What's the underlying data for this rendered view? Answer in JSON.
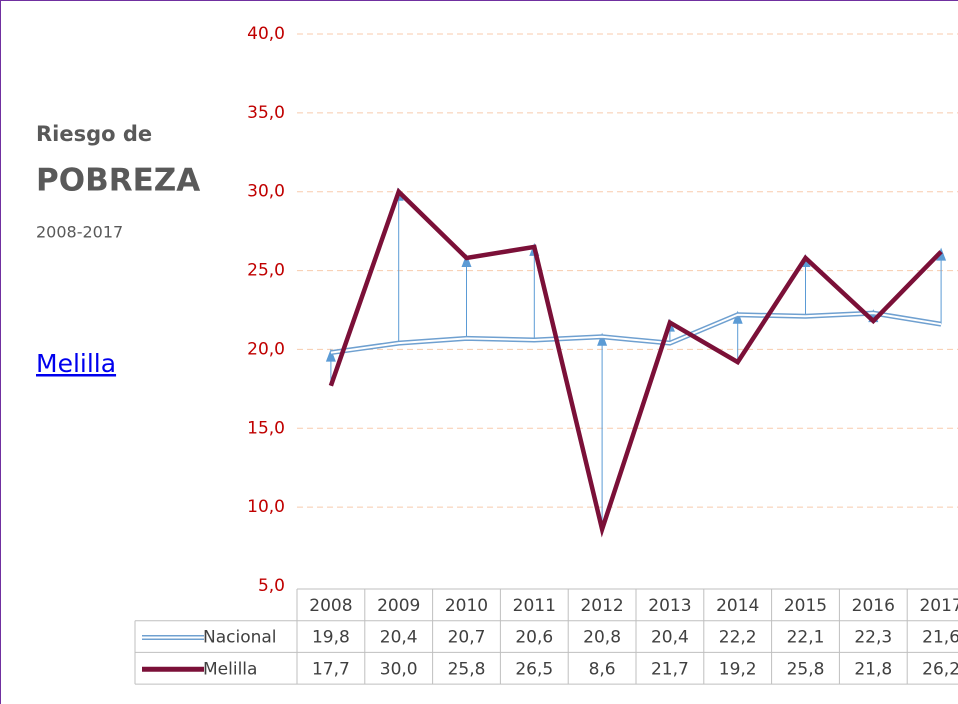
{
  "chart_data": {
    "type": "line",
    "title_prefix": "Riesgo de",
    "title": "POBREZA",
    "subtitle": "2008-2017",
    "link": "Melilla",
    "categories": [
      "2008",
      "2009",
      "2010",
      "2011",
      "2012",
      "2013",
      "2014",
      "2015",
      "2016",
      "2017"
    ],
    "series": [
      {
        "name": "Nacional",
        "color": "#6fa0d0",
        "values": [
          19.8,
          20.4,
          20.7,
          20.6,
          20.8,
          20.4,
          22.2,
          22.1,
          22.3,
          21.6
        ],
        "value_labels": [
          "19,8",
          "20,4",
          "20,7",
          "20,6",
          "20,8",
          "20,4",
          "22,2",
          "22,1",
          "22,3",
          "21,6"
        ]
      },
      {
        "name": "Melilla",
        "color": "#7b1038",
        "values": [
          17.7,
          30.0,
          25.8,
          26.5,
          8.6,
          21.7,
          19.2,
          25.8,
          21.8,
          26.2
        ],
        "value_labels": [
          "17,7",
          "30,0",
          "25,8",
          "26,5",
          "8,6",
          "21,7",
          "19,2",
          "25,8",
          "21,8",
          "26,2"
        ]
      }
    ],
    "ylim": [
      5,
      40
    ],
    "yticks": [
      {
        "value": 5,
        "label": "5,0"
      },
      {
        "value": 10,
        "label": "10,0"
      },
      {
        "value": 15,
        "label": "15,0"
      },
      {
        "value": 20,
        "label": "20,0"
      },
      {
        "value": 25,
        "label": "25,0"
      },
      {
        "value": 30,
        "label": "30,0"
      },
      {
        "value": 35,
        "label": "35,0"
      },
      {
        "value": 40,
        "label": "40,0"
      }
    ],
    "grid": true
  }
}
